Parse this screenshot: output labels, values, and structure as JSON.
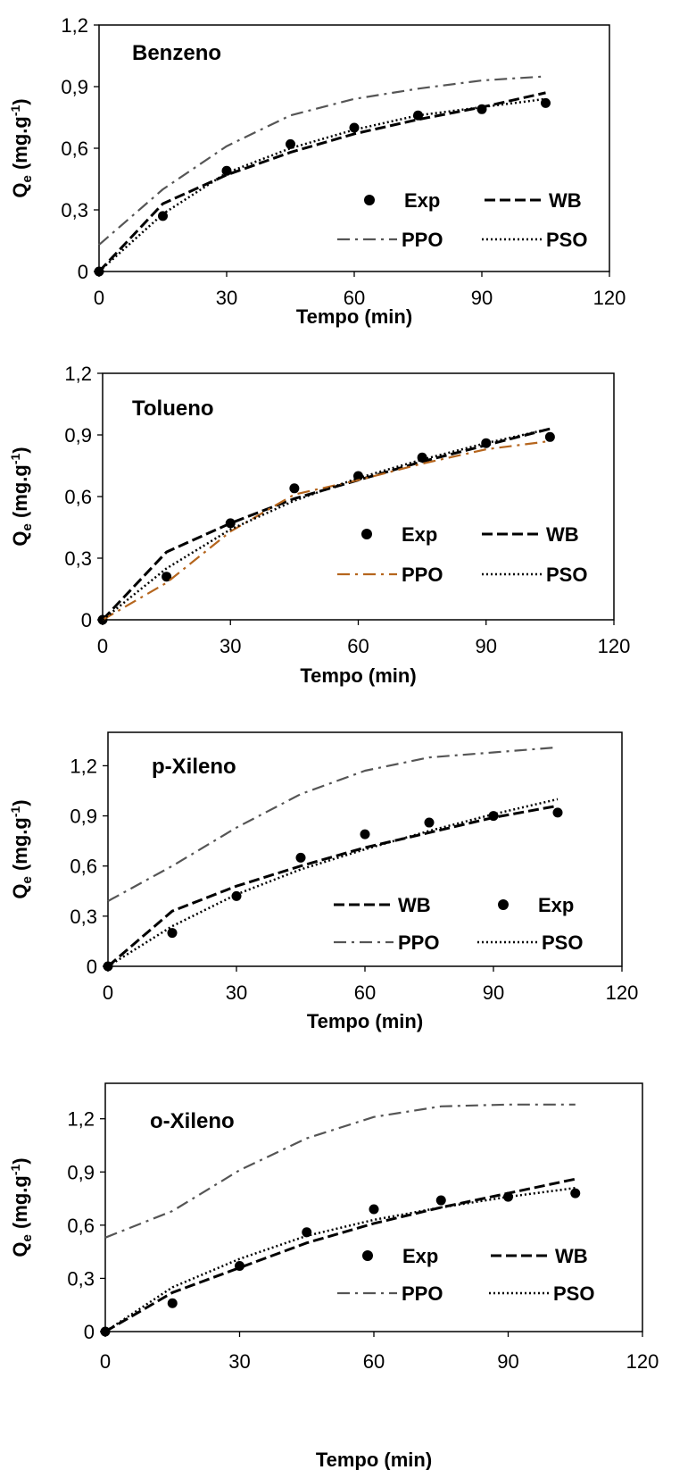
{
  "chart_data": [
    {
      "type": "scatter",
      "title": "Benzeno",
      "xlabel": "Tempo (min)",
      "ylabel_main": "Q",
      "ylabel_sub": "e",
      "ylabel_unit": " (mg.g",
      "ylabel_sup": "-1",
      "ylabel_close": ")",
      "xlim": [
        0,
        120
      ],
      "ylim": [
        0,
        1.2
      ],
      "xticks": [
        0,
        30,
        60,
        90,
        120
      ],
      "xtick_labels": [
        "0",
        "30",
        "60",
        "90",
        "120"
      ],
      "yticks": [
        0,
        0.3,
        0.6,
        0.9,
        1.2
      ],
      "ytick_labels": [
        "0",
        "0,3",
        "0,6",
        "0,9",
        "1,2"
      ],
      "legend_labels": {
        "exp": "Exp",
        "wb": "WB",
        "ppo": "PPO",
        "pso": "PSO"
      },
      "x": [
        0,
        15,
        30,
        45,
        60,
        75,
        90,
        105
      ],
      "series": [
        {
          "name": "Exp",
          "style": "points",
          "values": [
            0,
            0.27,
            0.49,
            0.62,
            0.7,
            0.76,
            0.79,
            0.82
          ]
        },
        {
          "name": "WB",
          "style": "dash",
          "values": [
            0,
            0.33,
            0.47,
            0.58,
            0.67,
            0.74,
            0.8,
            0.87
          ]
        },
        {
          "name": "PPO",
          "style": "dashdot",
          "values": [
            0.13,
            0.4,
            0.61,
            0.76,
            0.84,
            0.89,
            0.93,
            0.95
          ]
        },
        {
          "name": "PSO",
          "style": "dot",
          "values": [
            0,
            0.28,
            0.48,
            0.6,
            0.69,
            0.76,
            0.8,
            0.84
          ]
        }
      ]
    },
    {
      "type": "scatter",
      "title": "Tolueno",
      "xlabel": "Tempo (min)",
      "ylabel_main": "Q",
      "ylabel_sub": "e",
      "ylabel_unit": " (mg.g",
      "ylabel_sup": "-1",
      "ylabel_close": ")",
      "xlim": [
        0,
        120
      ],
      "ylim": [
        0,
        1.2
      ],
      "xticks": [
        0,
        30,
        60,
        90,
        120
      ],
      "xtick_labels": [
        "0",
        "30",
        "60",
        "90",
        "120"
      ],
      "yticks": [
        0,
        0.3,
        0.6,
        0.9,
        1.2
      ],
      "ytick_labels": [
        "0",
        "0,3",
        "0,6",
        "0,9",
        "1,2"
      ],
      "legend_labels": {
        "exp": "Exp",
        "wb": "WB",
        "ppo": "PPO",
        "pso": "PSO"
      },
      "x": [
        0,
        15,
        30,
        45,
        60,
        75,
        90,
        105
      ],
      "series": [
        {
          "name": "Exp",
          "style": "points",
          "values": [
            0,
            0.21,
            0.47,
            0.64,
            0.7,
            0.79,
            0.86,
            0.89
          ]
        },
        {
          "name": "WB",
          "style": "dash",
          "values": [
            0,
            0.33,
            0.47,
            0.59,
            0.68,
            0.77,
            0.85,
            0.93
          ]
        },
        {
          "name": "PPO",
          "style": "dashdot-orange",
          "values": [
            0,
            0.18,
            0.43,
            0.61,
            0.68,
            0.76,
            0.83,
            0.87
          ]
        },
        {
          "name": "PSO",
          "style": "dot",
          "values": [
            0,
            0.25,
            0.44,
            0.58,
            0.69,
            0.78,
            0.86,
            0.93
          ]
        }
      ]
    },
    {
      "type": "scatter",
      "title": "p-Xileno",
      "xlabel": "Tempo (min)",
      "ylabel_main": "Q",
      "ylabel_sub": "e",
      "ylabel_unit": " (mg.g",
      "ylabel_sup": "-1",
      "ylabel_close": ")",
      "xlim": [
        0,
        120
      ],
      "ylim": [
        0,
        1.4
      ],
      "xticks": [
        0,
        30,
        60,
        90,
        120
      ],
      "xtick_labels": [
        "0",
        "30",
        "60",
        "90",
        "120"
      ],
      "yticks": [
        0,
        0.3,
        0.6,
        0.9,
        1.2
      ],
      "ytick_labels": [
        "0",
        "0,3",
        "0,6",
        "0,9",
        "1,2"
      ],
      "legend_labels": {
        "exp": "Exp",
        "wb": "WB",
        "ppo": "PPO",
        "pso": "PSO"
      },
      "x": [
        0,
        15,
        30,
        45,
        60,
        75,
        90,
        105
      ],
      "series": [
        {
          "name": "Exp",
          "style": "points",
          "values": [
            0,
            0.2,
            0.42,
            0.65,
            0.79,
            0.86,
            0.9,
            0.92
          ]
        },
        {
          "name": "WB",
          "style": "dash",
          "values": [
            0,
            0.33,
            0.48,
            0.6,
            0.71,
            0.8,
            0.89,
            0.96
          ]
        },
        {
          "name": "PPO",
          "style": "dashdot",
          "values": [
            0.39,
            0.6,
            0.83,
            1.03,
            1.17,
            1.25,
            1.28,
            1.31
          ]
        },
        {
          "name": "PSO",
          "style": "dot",
          "values": [
            0,
            0.24,
            0.43,
            0.58,
            0.7,
            0.81,
            0.91,
            1.0
          ]
        }
      ]
    },
    {
      "type": "scatter",
      "title": "o-Xileno",
      "xlabel": "Tempo (min)",
      "ylabel_main": "Q",
      "ylabel_sub": "e",
      "ylabel_unit": " (mg.g",
      "ylabel_sup": "-1",
      "ylabel_close": ")",
      "xlim": [
        0,
        120
      ],
      "ylim": [
        0,
        1.4
      ],
      "xticks": [
        0,
        30,
        60,
        90,
        120
      ],
      "xtick_labels": [
        "0",
        "30",
        "60",
        "90",
        "120"
      ],
      "yticks": [
        0,
        0.3,
        0.6,
        0.9,
        1.2
      ],
      "ytick_labels": [
        "0",
        "0,3",
        "0,6",
        "0,9",
        "1,2"
      ],
      "legend_labels": {
        "exp": "Exp",
        "wb": "WB",
        "ppo": "PPO",
        "pso": "PSO"
      },
      "x": [
        0,
        15,
        30,
        45,
        60,
        75,
        90,
        105
      ],
      "series": [
        {
          "name": "Exp",
          "style": "points",
          "values": [
            0,
            0.16,
            0.37,
            0.56,
            0.69,
            0.74,
            0.76,
            0.78
          ]
        },
        {
          "name": "WB",
          "style": "dash",
          "values": [
            0,
            0.22,
            0.36,
            0.5,
            0.61,
            0.7,
            0.78,
            0.86
          ]
        },
        {
          "name": "PPO",
          "style": "dashdot",
          "values": [
            0.53,
            0.68,
            0.91,
            1.09,
            1.21,
            1.27,
            1.28,
            1.28
          ]
        },
        {
          "name": "PSO",
          "style": "dot",
          "values": [
            0,
            0.25,
            0.41,
            0.54,
            0.63,
            0.7,
            0.76,
            0.81
          ]
        }
      ]
    }
  ]
}
